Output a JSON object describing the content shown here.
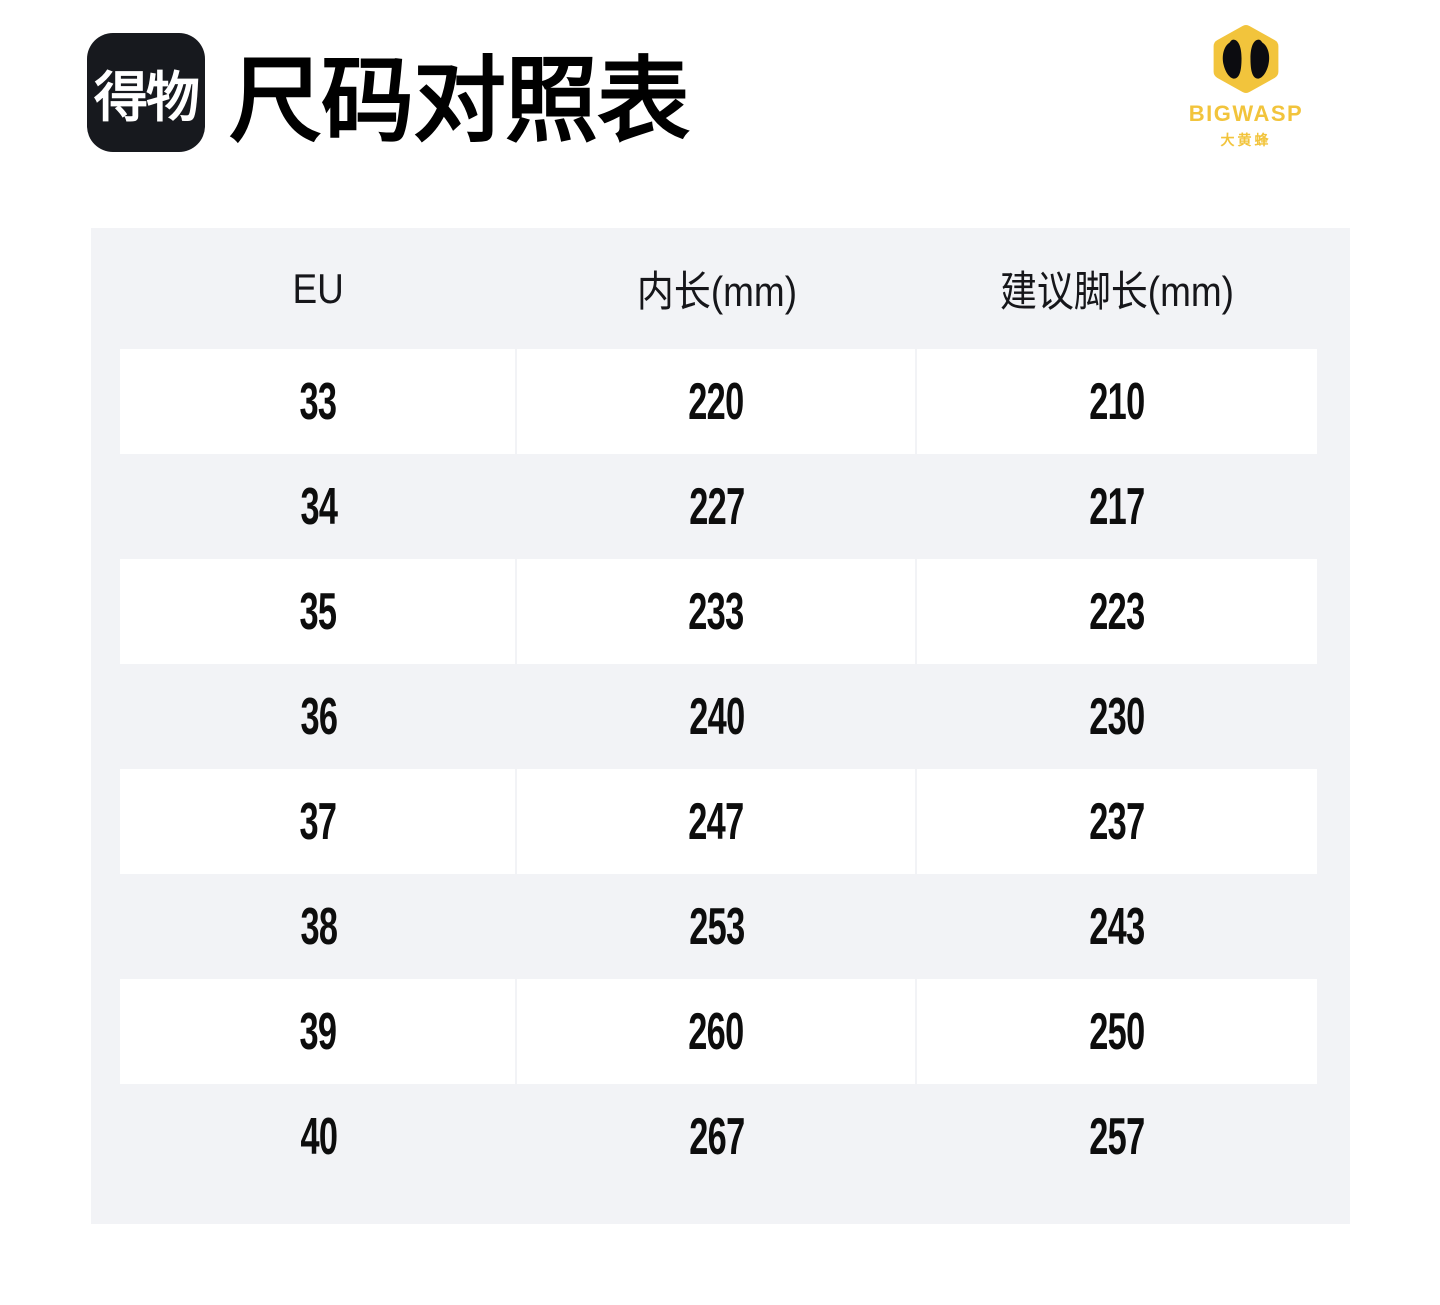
{
  "page": {
    "background": "#ffffff"
  },
  "header": {
    "app_logo": {
      "text": "得物",
      "bg_color": "#17191e"
    },
    "title": "尺码对照表",
    "brand": {
      "name": "BIGWASP",
      "name_cn": "大黄蜂",
      "color": "#f2c43c",
      "icon": "wasp-head-icon"
    }
  },
  "table": {
    "bg_color": "#f2f3f6",
    "columns": [
      "EU",
      "内长(mm)",
      "建议脚长(mm)"
    ],
    "rows": [
      [
        "33",
        "220",
        "210"
      ],
      [
        "34",
        "227",
        "217"
      ],
      [
        "35",
        "233",
        "223"
      ],
      [
        "36",
        "240",
        "230"
      ],
      [
        "37",
        "247",
        "237"
      ],
      [
        "38",
        "253",
        "243"
      ],
      [
        "39",
        "260",
        "250"
      ],
      [
        "40",
        "267",
        "257"
      ]
    ]
  },
  "chart_data": {
    "type": "table",
    "title": "尺码对照表",
    "columns": [
      "EU",
      "内长(mm)",
      "建议脚长(mm)"
    ],
    "rows": [
      [
        33,
        220,
        210
      ],
      [
        34,
        227,
        217
      ],
      [
        35,
        233,
        223
      ],
      [
        36,
        240,
        230
      ],
      [
        37,
        247,
        237
      ],
      [
        38,
        253,
        243
      ],
      [
        39,
        260,
        250
      ],
      [
        40,
        267,
        257
      ]
    ]
  }
}
